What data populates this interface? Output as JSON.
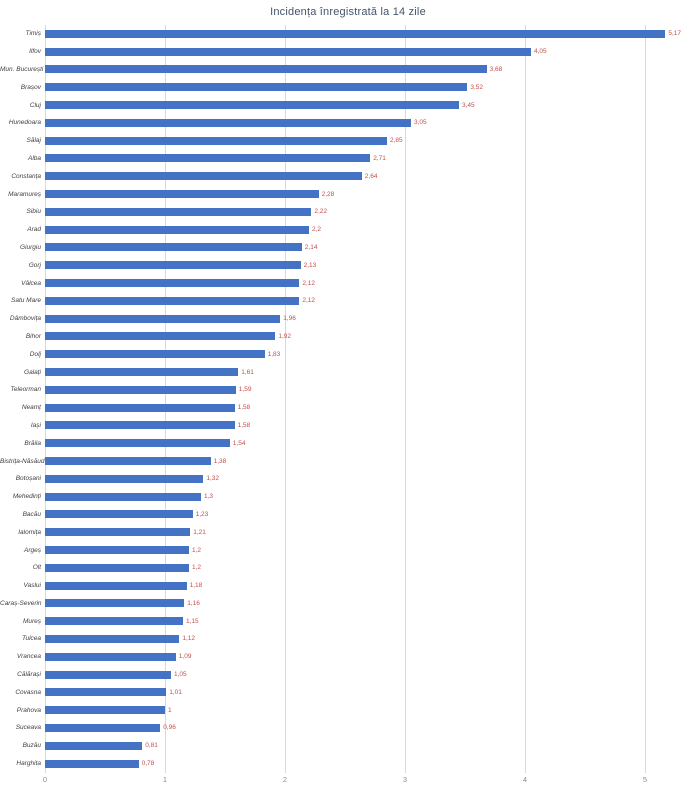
{
  "title": "Incidența înregistrată la 14 zile",
  "chart_data": {
    "type": "bar",
    "orientation": "horizontal",
    "title": "Incidența înregistrată la 14 zile",
    "categories": [
      "Timiș",
      "Ilfov",
      "Mun. București",
      "Brașov",
      "Cluj",
      "Hunedoara",
      "Sălaj",
      "Alba",
      "Constanța",
      "Maramureș",
      "Sibiu",
      "Arad",
      "Giurgiu",
      "Gorj",
      "Vâlcea",
      "Satu Mare",
      "Dâmbovița",
      "Bihor",
      "Dolj",
      "Galați",
      "Teleorman",
      "Neamț",
      "Iași",
      "Brăila",
      "Bistrița-Năsăud",
      "Botoșani",
      "Mehedinți",
      "Bacău",
      "Ialomița",
      "Argeș",
      "Olt",
      "Vaslui",
      "Caraș-Severin",
      "Mureș",
      "Tulcea",
      "Vrancea",
      "Călărași",
      "Covasna",
      "Prahova",
      "Suceava",
      "Buzău",
      "Harghita"
    ],
    "values": [
      5.17,
      4.05,
      3.68,
      3.52,
      3.45,
      3.05,
      2.85,
      2.71,
      2.64,
      2.28,
      2.22,
      2.2,
      2.14,
      2.13,
      2.12,
      2.12,
      1.96,
      1.92,
      1.83,
      1.61,
      1.59,
      1.58,
      1.58,
      1.54,
      1.38,
      1.32,
      1.3,
      1.23,
      1.21,
      1.2,
      1.2,
      1.18,
      1.16,
      1.15,
      1.12,
      1.09,
      1.05,
      1.01,
      1,
      0.96,
      0.81,
      0.78
    ],
    "value_labels": [
      "5,17",
      "4,05",
      "3,68",
      "3,52",
      "3,45",
      "3,05",
      "2,85",
      "2,71",
      "2,64",
      "2,28",
      "2,22",
      "2,2",
      "2,14",
      "2,13",
      "2,12",
      "2,12",
      "1,96",
      "1,92",
      "1,83",
      "1,61",
      "1,59",
      "1,58",
      "1,58",
      "1,54",
      "1,38",
      "1,32",
      "1,3",
      "1,23",
      "1,21",
      "1,2",
      "1,2",
      "1,18",
      "1,16",
      "1,15",
      "1,12",
      "1,09",
      "1,05",
      "1,01",
      "1",
      "0,96",
      "0,81",
      "0,78"
    ],
    "xlabel": "",
    "ylabel": "",
    "xlim": [
      0,
      5
    ],
    "x_ticks": [
      "0",
      "1",
      "2",
      "3",
      "4",
      "5"
    ],
    "grid": "vertical",
    "legend": "none",
    "bar_color": "#4472C4",
    "value_label_color": "#C0504D",
    "gridline_color": "#D9D9D9",
    "title_color": "#44546A",
    "axis_text_color": "#8c8c8c"
  }
}
